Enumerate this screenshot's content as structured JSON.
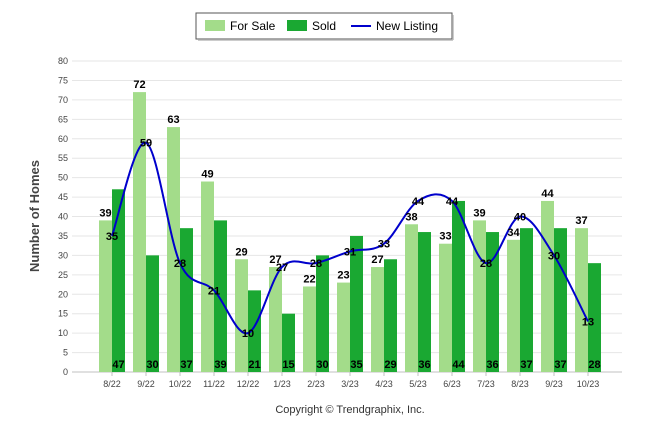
{
  "chart_data": {
    "type": "bar",
    "title": "",
    "xlabel": "",
    "ylabel": "Number of Homes",
    "ylim": [
      0,
      80
    ],
    "ytick_step": 5,
    "grid": true,
    "legend_position": "top-center",
    "categories": [
      "8/22",
      "9/22",
      "10/22",
      "11/22",
      "12/22",
      "1/23",
      "2/23",
      "3/23",
      "4/23",
      "5/23",
      "6/23",
      "7/23",
      "8/23",
      "9/23",
      "10/23"
    ],
    "series": [
      {
        "name": "For Sale",
        "kind": "bar",
        "color": "#a3dc8a",
        "values": [
          39,
          72,
          63,
          49,
          29,
          27,
          22,
          23,
          27,
          38,
          33,
          39,
          34,
          44,
          37
        ]
      },
      {
        "name": "Sold",
        "kind": "bar",
        "color": "#1aa832",
        "values": [
          47,
          30,
          37,
          39,
          21,
          15,
          30,
          35,
          29,
          36,
          44,
          36,
          37,
          37,
          28
        ]
      },
      {
        "name": "New Listing",
        "kind": "line",
        "color": "#0000cc",
        "values": [
          35,
          59,
          28,
          21,
          10,
          27,
          28,
          31,
          33,
          44,
          44,
          28,
          40,
          30,
          13
        ]
      }
    ],
    "credit": "Copyright © Trendgraphix, Inc."
  }
}
